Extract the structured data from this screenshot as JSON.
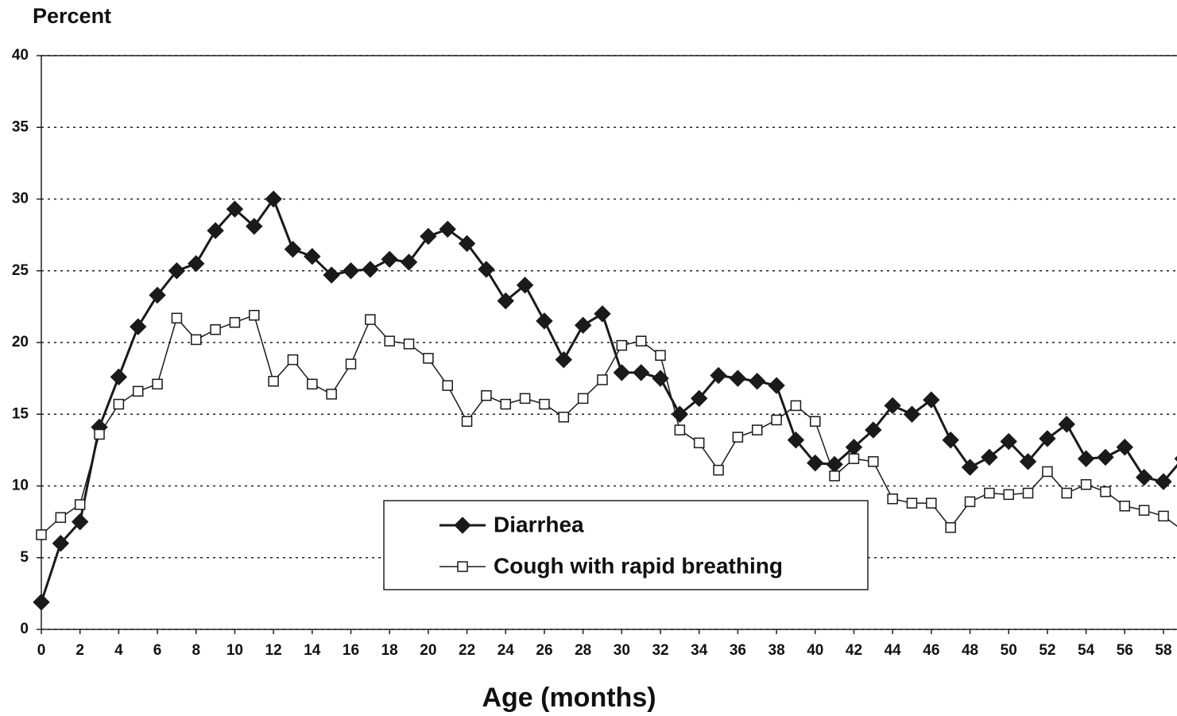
{
  "chart_data": {
    "type": "line",
    "y_label": "Percent",
    "x_label": "Age (months)",
    "x": [
      0,
      1,
      2,
      3,
      4,
      5,
      6,
      7,
      8,
      9,
      10,
      11,
      12,
      13,
      14,
      15,
      16,
      17,
      18,
      19,
      20,
      21,
      22,
      23,
      24,
      25,
      26,
      27,
      28,
      29,
      30,
      31,
      32,
      33,
      34,
      35,
      36,
      37,
      38,
      39,
      40,
      41,
      42,
      43,
      44,
      45,
      46,
      47,
      48,
      49,
      50,
      51,
      52,
      53,
      54,
      55,
      56,
      57,
      58,
      59
    ],
    "series": [
      {
        "name": "Diarrhea",
        "color": "#1a1a1a",
        "marker": "diamond",
        "values": [
          1.9,
          6.0,
          7.5,
          14.1,
          17.6,
          21.1,
          23.3,
          25.0,
          25.5,
          27.8,
          29.3,
          28.1,
          30.0,
          26.5,
          26.0,
          24.7,
          25.0,
          25.1,
          25.8,
          25.6,
          27.4,
          27.9,
          26.9,
          25.1,
          22.9,
          24.0,
          21.5,
          18.8,
          21.2,
          22.0,
          17.9,
          17.9,
          17.5,
          15.0,
          16.1,
          17.7,
          17.5,
          17.3,
          17.0,
          13.2,
          11.6,
          11.5,
          12.7,
          13.9,
          15.6,
          15.0,
          16.0,
          13.2,
          11.3,
          12.0,
          13.1,
          11.7,
          13.3,
          14.3,
          11.9,
          12.0,
          12.7,
          10.6,
          10.3,
          11.9
        ]
      },
      {
        "name": "Cough with rapid breathing",
        "color": "#1a1a1a",
        "marker": "square",
        "values": [
          6.6,
          7.8,
          8.7,
          13.6,
          15.7,
          16.6,
          17.1,
          21.7,
          20.2,
          20.9,
          21.4,
          21.9,
          17.3,
          18.8,
          17.1,
          16.4,
          18.5,
          21.6,
          20.1,
          19.9,
          18.9,
          17.0,
          14.5,
          16.3,
          15.7,
          16.1,
          15.7,
          14.8,
          16.1,
          17.4,
          19.8,
          20.1,
          19.1,
          13.9,
          13.0,
          11.1,
          13.4,
          13.9,
          14.6,
          15.6,
          14.5,
          10.7,
          11.9,
          11.7,
          9.1,
          8.8,
          8.8,
          7.1,
          8.9,
          9.5,
          9.4,
          9.5,
          11.0,
          9.5,
          10.1,
          9.6,
          8.6,
          8.3,
          7.9,
          6.9
        ]
      }
    ],
    "xlim": [
      0,
      58.7
    ],
    "xticks": [
      0,
      2,
      4,
      6,
      8,
      10,
      12,
      14,
      16,
      18,
      20,
      22,
      24,
      26,
      28,
      30,
      32,
      34,
      36,
      38,
      40,
      42,
      44,
      46,
      48,
      50,
      52,
      54,
      56,
      58
    ],
    "ylim": [
      0,
      40
    ],
    "yticks": [
      0,
      5,
      10,
      15,
      20,
      25,
      30,
      35,
      40
    ],
    "grid": true
  }
}
